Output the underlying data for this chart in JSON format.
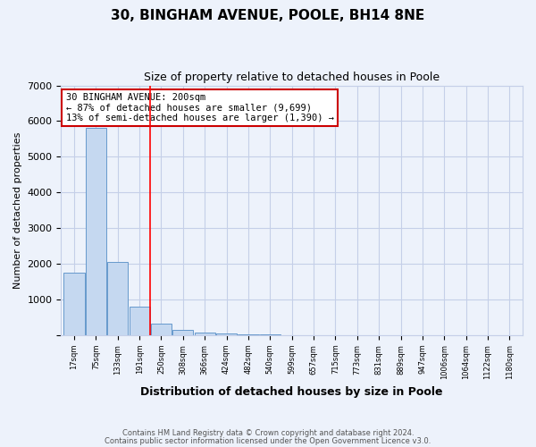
{
  "title1": "30, BINGHAM AVENUE, POOLE, BH14 8NE",
  "title2": "Size of property relative to detached houses in Poole",
  "xlabel": "Distribution of detached houses by size in Poole",
  "ylabel": "Number of detached properties",
  "categories": [
    "17sqm",
    "75sqm",
    "133sqm",
    "191sqm",
    "250sqm",
    "308sqm",
    "366sqm",
    "424sqm",
    "482sqm",
    "540sqm",
    "599sqm",
    "657sqm",
    "715sqm",
    "773sqm",
    "831sqm",
    "889sqm",
    "947sqm",
    "1006sqm",
    "1064sqm",
    "1122sqm",
    "1180sqm"
  ],
  "values": [
    1750,
    5800,
    2050,
    800,
    320,
    150,
    80,
    50,
    30,
    15,
    8,
    3,
    1,
    0,
    0,
    0,
    0,
    0,
    0,
    0,
    0
  ],
  "bar_color": "#c5d8f0",
  "bar_edge_color": "#6699cc",
  "red_line_x": 3.5,
  "annotation_text": "30 BINGHAM AVENUE: 200sqm\n← 87% of detached houses are smaller (9,699)\n13% of semi-detached houses are larger (1,390) →",
  "annotation_box_color": "#ffffff",
  "annotation_border_color": "#cc0000",
  "ylim": [
    0,
    7000
  ],
  "yticks": [
    0,
    1000,
    2000,
    3000,
    4000,
    5000,
    6000,
    7000
  ],
  "footer1": "Contains HM Land Registry data © Crown copyright and database right 2024.",
  "footer2": "Contains public sector information licensed under the Open Government Licence v3.0.",
  "background_color": "#edf2fb",
  "grid_color": "#c5cfe8"
}
